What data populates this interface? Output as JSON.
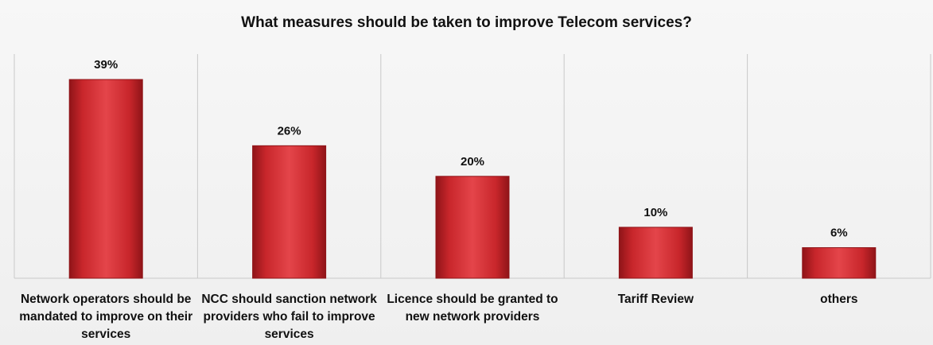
{
  "chart_data": {
    "type": "bar",
    "title": "What measures should be taken to improve Telecom services?",
    "categories": [
      "Network operators should be mandated to improve on their services",
      "NCC should sanction network providers who fail to improve services",
      "Licence should be granted to new network providers",
      "Tariff Review",
      "others"
    ],
    "values": [
      39,
      26,
      20,
      10,
      6
    ],
    "data_labels": [
      "39%",
      "26%",
      "20%",
      "10%",
      "6%"
    ],
    "xlabel": "",
    "ylabel": "",
    "ylim": [
      0,
      40
    ],
    "grid": false,
    "legend": "none",
    "colors": {
      "bar": "#c8262b",
      "bar_highlight": "#e4454a",
      "bar_shadow": "#8f1418",
      "divider": "#c9c9c9",
      "background": "#f3f3f3"
    }
  }
}
